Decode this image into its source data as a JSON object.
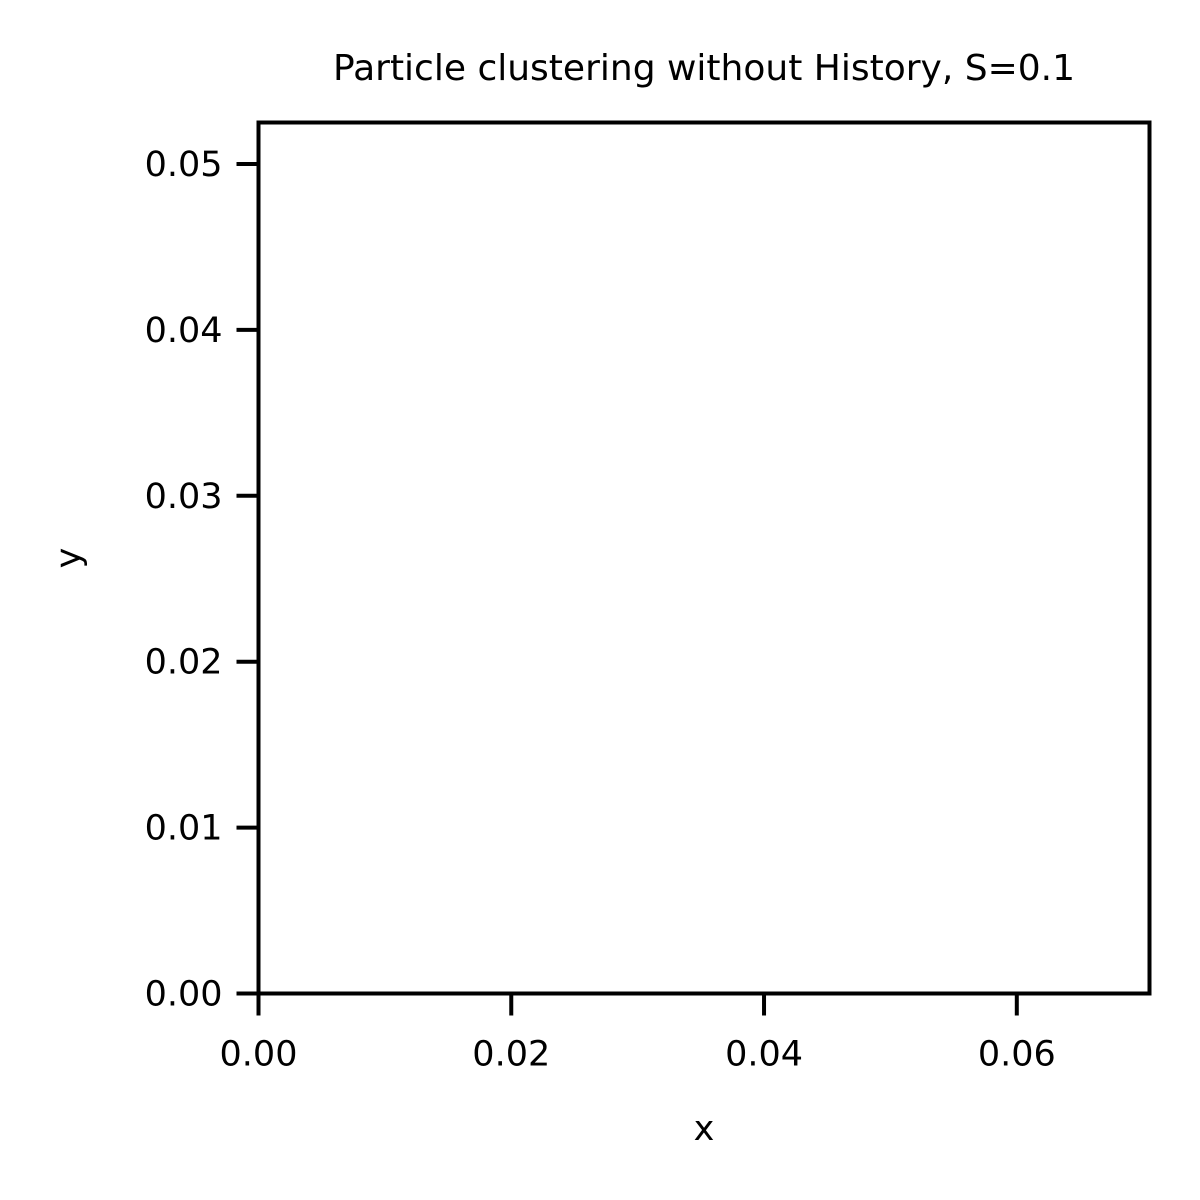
{
  "chart_data": {
    "type": "scatter",
    "title": "Particle clustering without History, S=0.1",
    "xlabel": "x",
    "ylabel": "y",
    "xlim": [
      0.0,
      0.0705
    ],
    "ylim": [
      0.0,
      0.0525
    ],
    "xticks": [
      0.0,
      0.02,
      0.04,
      0.06
    ],
    "xtick_labels": [
      "0.00",
      "0.02",
      "0.04",
      "0.06"
    ],
    "yticks": [
      0.0,
      0.01,
      0.02,
      0.03,
      0.04,
      0.05
    ],
    "ytick_labels": [
      "0.00",
      "0.01",
      "0.02",
      "0.03",
      "0.04",
      "0.05"
    ],
    "grid": false,
    "series": [
      {
        "x": [],
        "y": []
      }
    ],
    "colors": {
      "axes": "#000000",
      "background": "#ffffff"
    }
  }
}
